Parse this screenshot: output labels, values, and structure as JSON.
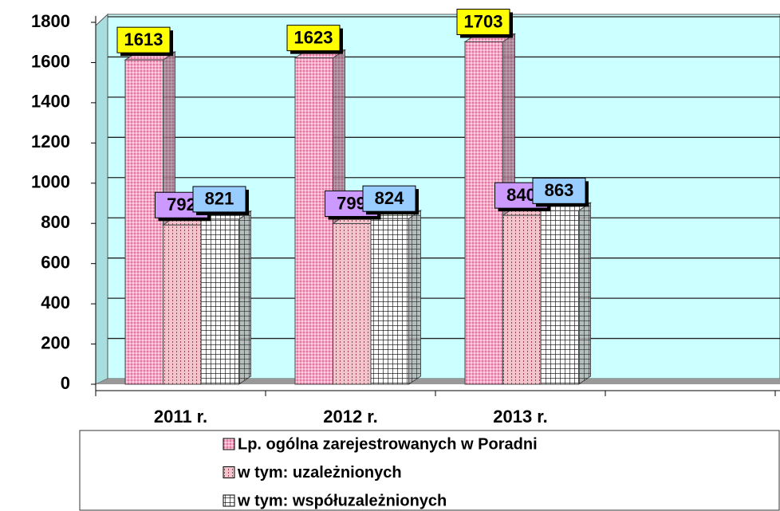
{
  "chart_data": {
    "type": "bar3d",
    "categories": [
      "2011 r.",
      "2012 r.",
      "2013 r.",
      null
    ],
    "series": [
      {
        "name": "Lp. ogólna zarejestrowanych w Poradni",
        "color": "#f7a8c8",
        "values": [
          1613,
          1623,
          1703,
          null
        ]
      },
      {
        "name": "w tym: uzależnionych",
        "color": "#f2c4cc",
        "values": [
          792,
          799,
          840,
          null
        ]
      },
      {
        "name": "w tym: współuzależnionych",
        "color": "#ffffff",
        "values": [
          821,
          824,
          863,
          null
        ]
      }
    ],
    "ylim": [
      0,
      1800
    ],
    "yticks": [
      0,
      200,
      400,
      600,
      800,
      1000,
      1200,
      1400,
      1600,
      1800
    ],
    "grid": true
  }
}
